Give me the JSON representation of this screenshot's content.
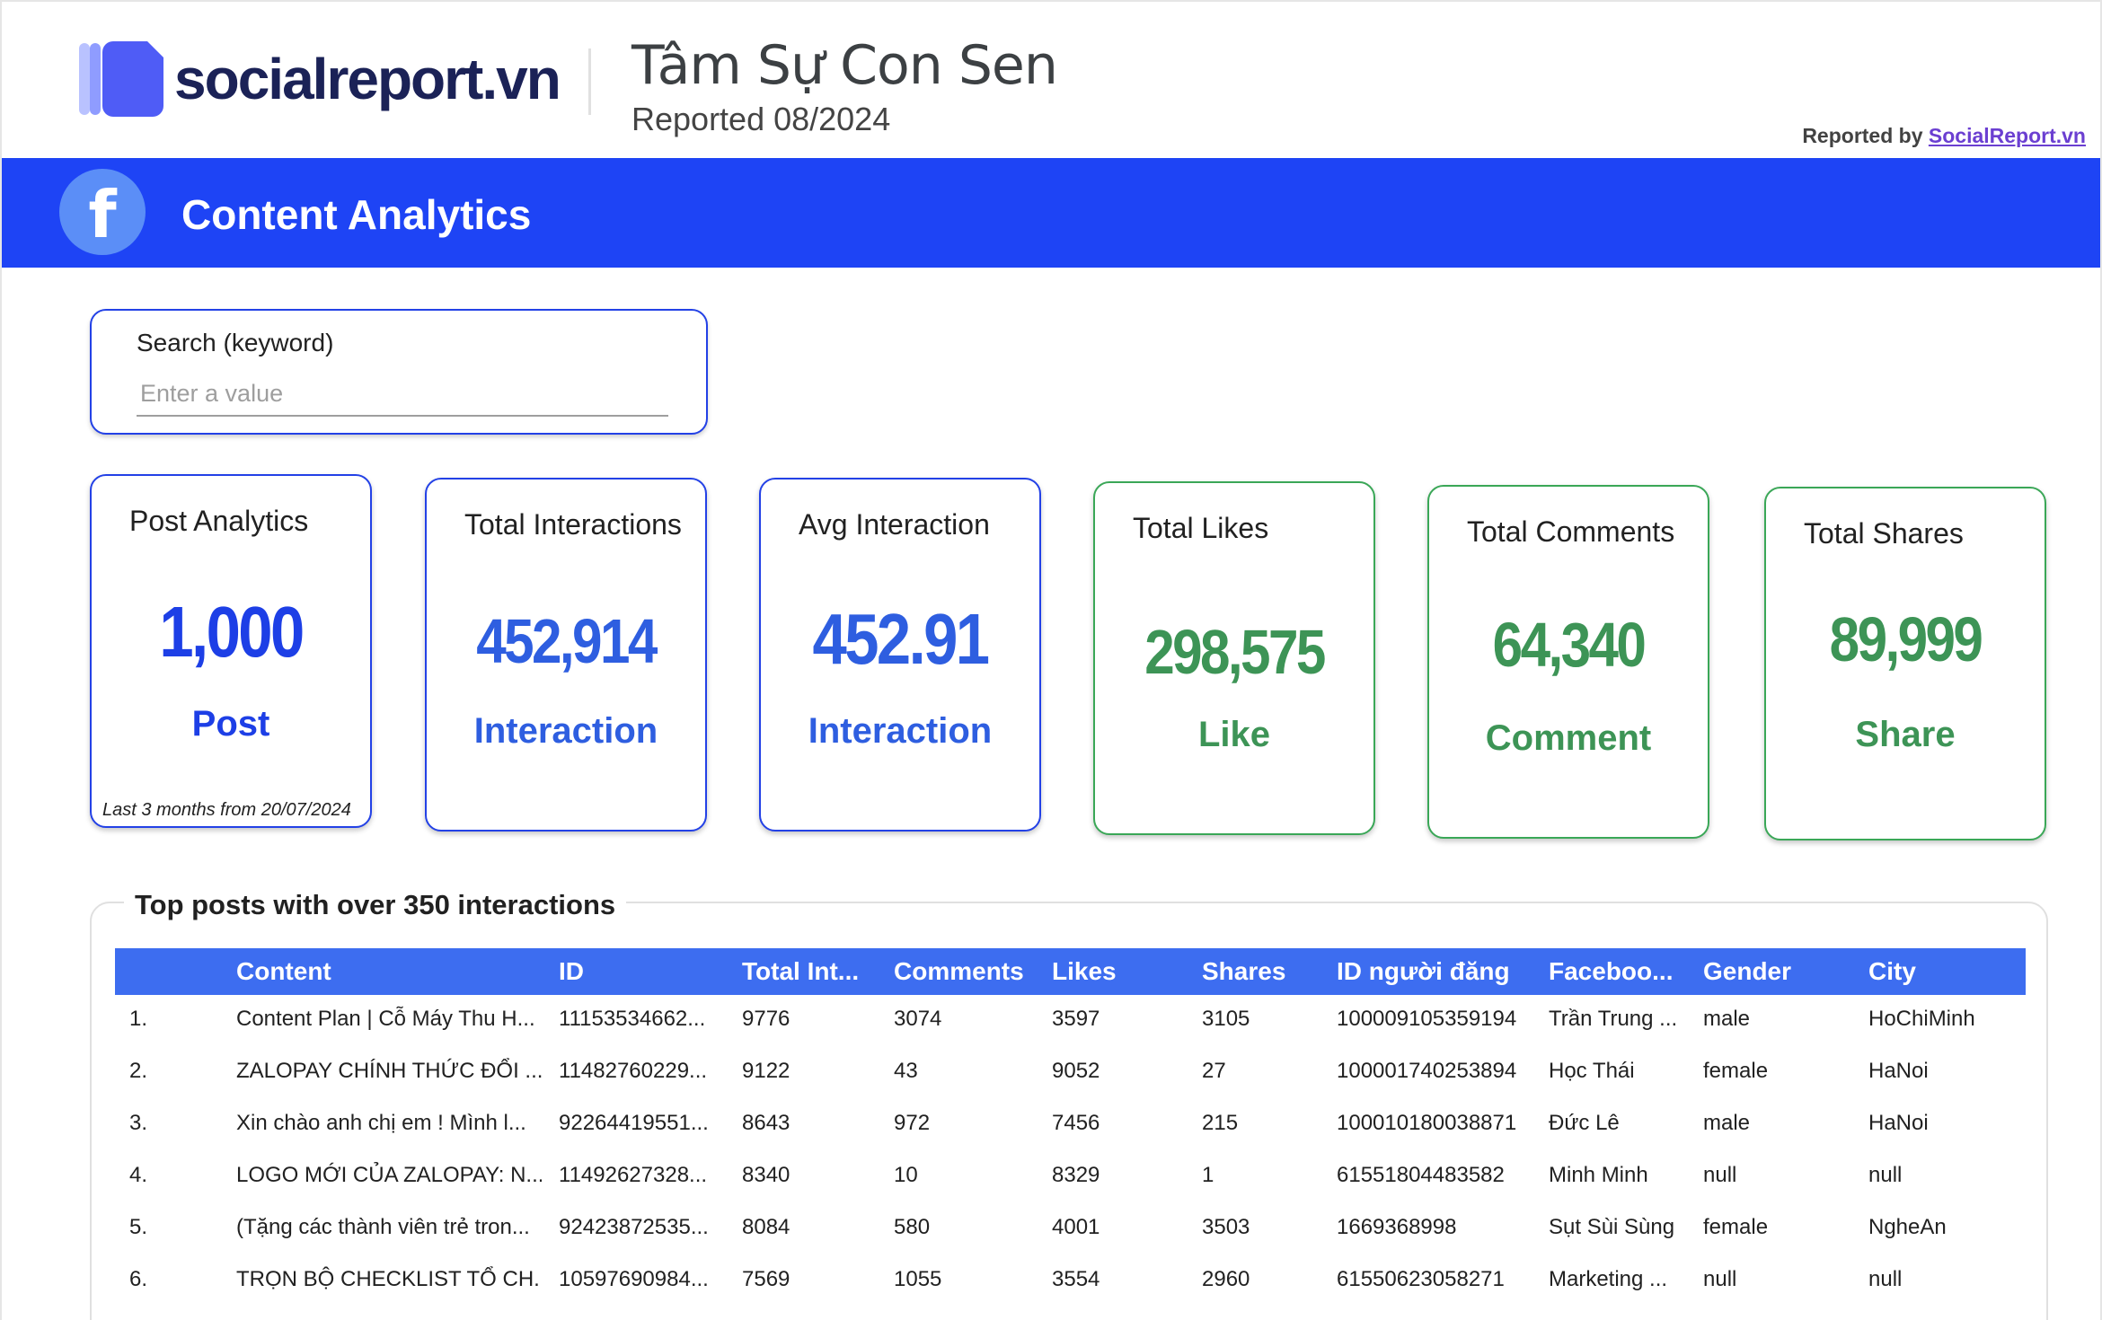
{
  "header": {
    "logo_text": "socialreport.vn",
    "title": "Tâm Sự Con Sen",
    "subtitle": "Reported 08/2024",
    "reported_by_label": "Reported by ",
    "reported_by_link": "SocialReport.vn"
  },
  "banner": {
    "icon": "facebook-icon",
    "title": "Content Analytics",
    "color": "#1e44f5"
  },
  "search": {
    "label": "Search (keyword)",
    "placeholder": "Enter a value",
    "value": ""
  },
  "metrics": [
    {
      "title": "Post Analytics",
      "value": "1,000",
      "unit": "Post",
      "note": "Last 3 months from 20/07/2024"
    },
    {
      "title": "Total Interactions",
      "value": "452,914",
      "unit": "Interaction"
    },
    {
      "title": "Avg Interaction",
      "value": "452.91",
      "unit": "Interaction"
    },
    {
      "title": "Total Likes",
      "value": "298,575",
      "unit": "Like"
    },
    {
      "title": "Total Comments",
      "value": "64,340",
      "unit": "Comment"
    },
    {
      "title": "Total Shares",
      "value": "89,999",
      "unit": "Share"
    }
  ],
  "table": {
    "title": "Top posts with over 350 interactions",
    "columns": [
      "Content",
      "ID",
      "Total Int...",
      "Comments",
      "Likes",
      "Shares",
      "ID người đăng",
      "Faceboo...",
      "Gender",
      "City"
    ],
    "rows": [
      [
        "1.",
        "Content Plan | Cỗ Máy Thu H...",
        "11153534662...",
        "9776",
        "3074",
        "3597",
        "3105",
        "100009105359194",
        "Trần Trung ...",
        "male",
        "HoChiMinh"
      ],
      [
        "2.",
        "ZALOPAY CHÍNH THỨC ĐỔI ...",
        "11482760229...",
        "9122",
        "43",
        "9052",
        "27",
        "100001740253894",
        "Học Thái",
        "female",
        "HaNoi"
      ],
      [
        "3.",
        "Xin chào anh chị em ! Mình l...",
        "92264419551...",
        "8643",
        "972",
        "7456",
        "215",
        "100010180038871",
        "Đức Lê",
        "male",
        "HaNoi"
      ],
      [
        "4.",
        "LOGO MỚI CỦA ZALOPAY: N...",
        "11492627328...",
        "8340",
        "10",
        "8329",
        "1",
        "61551804483582",
        "Minh Minh",
        "null",
        "null"
      ],
      [
        "5.",
        "(Tặng các thành viên trẻ tron...",
        "92423872535...",
        "8084",
        "580",
        "4001",
        "3503",
        "1669368998",
        "Sụt Sùi Sùng",
        "female",
        "NgheAn"
      ],
      [
        "6.",
        "TRỌN BỘ CHECKLIST TỔ CH...",
        "10597690984...",
        "7569",
        "1055",
        "3554",
        "2960",
        "61550623058271",
        "Marketing ...",
        "null",
        "null"
      ]
    ]
  }
}
